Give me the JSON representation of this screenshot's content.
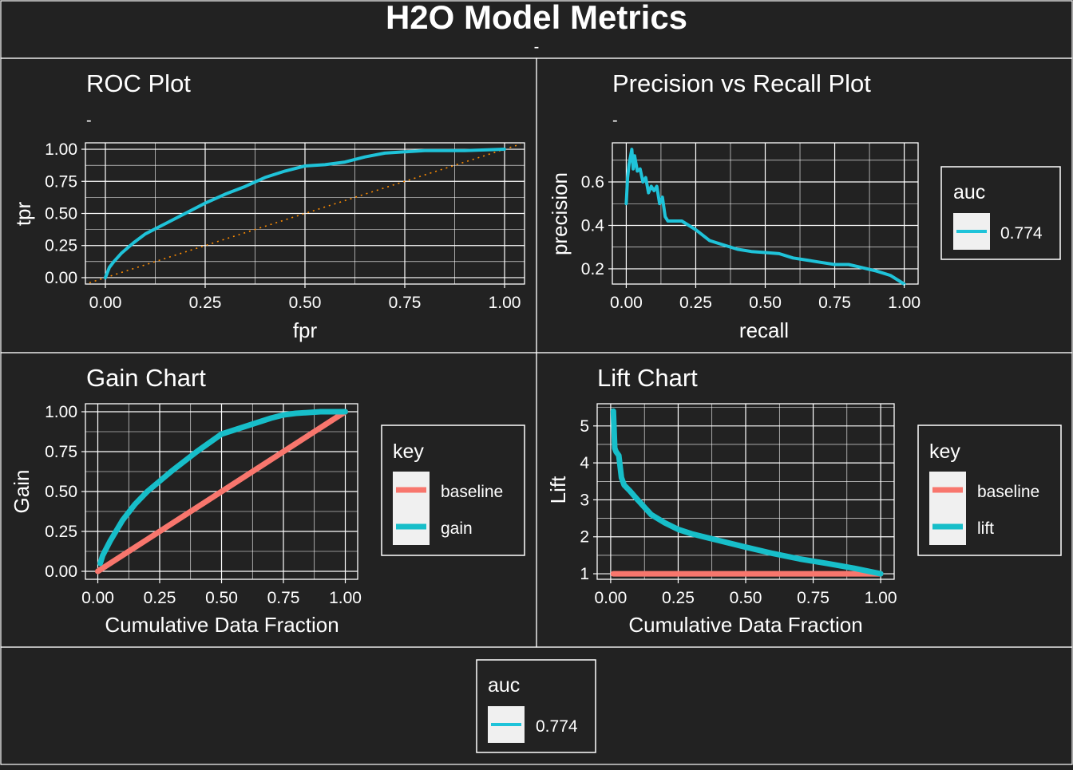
{
  "title": "H2O Model Metrics",
  "subtitle": "-",
  "colors": {
    "background": "#222222",
    "foreground": "#ffffff",
    "auc_line": "#1fc3d9",
    "baseline": "#f8766d",
    "gain_lift": "#17bec9",
    "diagonal": "#ff8c00",
    "legend_key_bg": "#f0f0f0"
  },
  "legend_bottom": {
    "title": "auc",
    "label": "0.774"
  },
  "chart_data": [
    {
      "id": "roc",
      "type": "line",
      "title": "ROC Plot",
      "subtitle": "-",
      "xlabel": "fpr",
      "ylabel": "tpr",
      "xlim": [
        0,
        1
      ],
      "ylim": [
        0,
        1
      ],
      "xticks": [
        "0.00",
        "0.25",
        "0.50",
        "0.75",
        "1.00"
      ],
      "yticks": [
        "0.00",
        "0.25",
        "0.50",
        "0.75",
        "1.00"
      ],
      "grid": true,
      "series": [
        {
          "x": [
            0,
            0.01,
            0.02,
            0.04,
            0.07,
            0.1,
            0.15,
            0.2,
            0.25,
            0.3,
            0.35,
            0.4,
            0.45,
            0.5,
            0.55,
            0.6,
            0.65,
            0.7,
            0.75,
            0.8,
            0.9,
            1.0
          ],
          "y": [
            0,
            0.08,
            0.12,
            0.19,
            0.27,
            0.34,
            0.42,
            0.5,
            0.58,
            0.65,
            0.71,
            0.78,
            0.83,
            0.87,
            0.88,
            0.9,
            0.94,
            0.97,
            0.98,
            0.99,
            0.99,
            1.0
          ]
        }
      ],
      "diagonal": true
    },
    {
      "id": "pr",
      "type": "line",
      "title": "Precision vs Recall Plot",
      "subtitle": "-",
      "xlabel": "recall",
      "ylabel": "precision",
      "xlim": [
        0,
        1
      ],
      "ylim": [
        0.13,
        0.78
      ],
      "xticks": [
        "0.00",
        "0.25",
        "0.50",
        "0.75",
        "1.00"
      ],
      "yticks": [
        "0.2",
        "0.4",
        "0.6"
      ],
      "grid": true,
      "legend": {
        "title": "auc",
        "label": "0.774",
        "position": "right"
      },
      "series": [
        {
          "x": [
            0.0,
            0.005,
            0.01,
            0.02,
            0.025,
            0.03,
            0.04,
            0.05,
            0.06,
            0.07,
            0.08,
            0.09,
            0.1,
            0.11,
            0.12,
            0.13,
            0.14,
            0.15,
            0.17,
            0.2,
            0.25,
            0.3,
            0.35,
            0.4,
            0.45,
            0.5,
            0.55,
            0.6,
            0.65,
            0.7,
            0.75,
            0.8,
            0.85,
            0.9,
            0.95,
            1.0
          ],
          "y": [
            0.5,
            0.62,
            0.68,
            0.75,
            0.66,
            0.72,
            0.65,
            0.66,
            0.6,
            0.62,
            0.55,
            0.58,
            0.56,
            0.58,
            0.5,
            0.53,
            0.44,
            0.42,
            0.42,
            0.42,
            0.38,
            0.33,
            0.31,
            0.29,
            0.28,
            0.275,
            0.27,
            0.25,
            0.24,
            0.23,
            0.22,
            0.22,
            0.205,
            0.19,
            0.17,
            0.13
          ]
        }
      ]
    },
    {
      "id": "gain",
      "type": "line",
      "title": "Gain Chart",
      "xlabel": "Cumulative Data Fraction",
      "ylabel": "Gain",
      "xlim": [
        0,
        1
      ],
      "ylim": [
        0,
        1
      ],
      "xticks": [
        "0.00",
        "0.25",
        "0.50",
        "0.75",
        "1.00"
      ],
      "yticks": [
        "0.00",
        "0.25",
        "0.50",
        "0.75",
        "1.00"
      ],
      "grid": true,
      "legend": {
        "title": "key",
        "entries": [
          "baseline",
          "gain"
        ],
        "position": "right"
      },
      "series": [
        {
          "name": "baseline",
          "x": [
            0.0,
            1.0
          ],
          "y": [
            0.0,
            1.0
          ]
        },
        {
          "name": "gain",
          "x": [
            0.01,
            0.02,
            0.05,
            0.1,
            0.15,
            0.2,
            0.3,
            0.4,
            0.5,
            0.6,
            0.7,
            0.75,
            0.8,
            0.9,
            1.0
          ],
          "y": [
            0.05,
            0.1,
            0.19,
            0.32,
            0.42,
            0.5,
            0.63,
            0.75,
            0.86,
            0.91,
            0.96,
            0.98,
            0.99,
            1.0,
            1.0
          ]
        }
      ]
    },
    {
      "id": "lift",
      "type": "line",
      "title": "Lift Chart",
      "xlabel": "Cumulative Data Fraction",
      "ylabel": "Lift",
      "xlim": [
        0,
        1
      ],
      "ylim": [
        0.85,
        5.6
      ],
      "xticks": [
        "0.00",
        "0.25",
        "0.50",
        "0.75",
        "1.00"
      ],
      "yticks": [
        "1",
        "2",
        "3",
        "4",
        "5"
      ],
      "grid": true,
      "legend": {
        "title": "key",
        "entries": [
          "baseline",
          "lift"
        ],
        "position": "right"
      },
      "series": [
        {
          "name": "baseline",
          "x": [
            0.01,
            1.0
          ],
          "y": [
            1.0,
            1.0
          ]
        },
        {
          "name": "lift",
          "x": [
            0.01,
            0.012,
            0.015,
            0.02,
            0.03,
            0.04,
            0.05,
            0.07,
            0.1,
            0.15,
            0.2,
            0.25,
            0.3,
            0.4,
            0.5,
            0.6,
            0.7,
            0.8,
            0.9,
            1.0
          ],
          "y": [
            5.4,
            5.0,
            4.4,
            4.3,
            4.2,
            3.6,
            3.4,
            3.25,
            3.0,
            2.6,
            2.38,
            2.2,
            2.08,
            1.9,
            1.72,
            1.55,
            1.4,
            1.28,
            1.15,
            1.0
          ]
        }
      ]
    }
  ]
}
